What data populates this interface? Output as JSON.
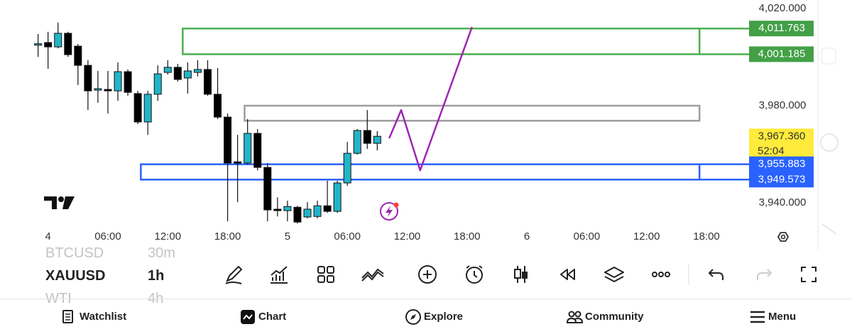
{
  "chart_data": {
    "type": "candlestick",
    "up_color": "#22b4c8",
    "down_color": "#000000",
    "xlim": [
      -1.4,
      77.03
    ],
    "ylim": [
      3930.1,
      4023.5
    ],
    "xticks": [
      {
        "value": 0,
        "label": "4"
      },
      {
        "value": 6,
        "label": "06:00"
      },
      {
        "value": 12,
        "label": "12:00"
      },
      {
        "value": 18,
        "label": "18:00"
      },
      {
        "value": 24,
        "label": "5"
      },
      {
        "value": 30,
        "label": "06:00"
      },
      {
        "value": 36,
        "label": "12:00"
      },
      {
        "value": 42,
        "label": "18:00"
      },
      {
        "value": 48,
        "label": "6"
      },
      {
        "value": 54,
        "label": "06:00"
      },
      {
        "value": 60,
        "label": "12:00"
      },
      {
        "value": 66,
        "label": "18:00"
      }
    ],
    "yticks": [
      {
        "value": 4020,
        "label": "4,020.000"
      },
      {
        "value": 3980,
        "label": "3,980.000"
      },
      {
        "value": 3940,
        "label": "3,940.000"
      }
    ],
    "x": [
      -1,
      0,
      1,
      2,
      3,
      4,
      5,
      6,
      7,
      8,
      9,
      10,
      11,
      12,
      13,
      14,
      15,
      16,
      17,
      18,
      19,
      20,
      21,
      22,
      23,
      24,
      25,
      26,
      27,
      28,
      29,
      30,
      31,
      32,
      33
    ],
    "ohlc": [
      [
        4005.4,
        4009.5,
        4000.1,
        4005.5
      ],
      [
        4006.0,
        4010.4,
        3995.2,
        4004.2
      ],
      [
        4004.2,
        4014.2,
        4003.6,
        4009.8
      ],
      [
        4009.8,
        4010.4,
        4000.1,
        4001.0
      ],
      [
        4004.5,
        4005.4,
        3988.5,
        3996.6
      ],
      [
        3996.6,
        3998.7,
        3978.2,
        3986.1
      ],
      [
        3986.4,
        3994.3,
        3981.2,
        3987.0
      ],
      [
        3986.7,
        3994.3,
        3976.8,
        3986.1
      ],
      [
        3986.1,
        3997.8,
        3982.0,
        3994.0
      ],
      [
        3994.0,
        3994.9,
        3984.1,
        3985.5
      ],
      [
        3985.0,
        3986.1,
        3972.4,
        3973.3
      ],
      [
        3973.3,
        3986.1,
        3968.0,
        3984.7
      ],
      [
        3984.7,
        3996.6,
        3982.0,
        3993.1
      ],
      [
        3993.7,
        3998.7,
        3992.8,
        3995.8
      ],
      [
        3995.8,
        3997.2,
        3989.9,
        3990.8
      ],
      [
        3991.4,
        3997.8,
        3985.0,
        3994.3
      ],
      [
        3993.7,
        3998.7,
        3992.0,
        3994.9
      ],
      [
        3994.9,
        3998.7,
        3984.1,
        3984.7
      ],
      [
        3984.7,
        3995.5,
        3974.5,
        3975.3
      ],
      [
        3975.3,
        3976.8,
        3932.4,
        3956.4
      ],
      [
        3956.9,
        3968.0,
        3940.3,
        3956.4
      ],
      [
        3956.4,
        3974.5,
        3955.8,
        3968.6
      ],
      [
        3968.6,
        3970.4,
        3953.4,
        3954.6
      ],
      [
        3954.6,
        3956.4,
        3932.4,
        3937.1
      ],
      [
        3937.4,
        3942.3,
        3934.4,
        3936.8
      ],
      [
        3936.8,
        3940.9,
        3932.4,
        3938.5
      ],
      [
        3938.2,
        3938.8,
        3931.5,
        3932.1
      ],
      [
        3934.2,
        3940.3,
        3933.6,
        3937.4
      ],
      [
        3934.4,
        3940.9,
        3933.6,
        3938.8
      ],
      [
        3938.8,
        3949.1,
        3935.9,
        3936.5
      ],
      [
        3936.5,
        3949.1,
        3935.9,
        3948.2
      ],
      [
        3948.2,
        3965.1,
        3947.0,
        3960.4
      ],
      [
        3960.4,
        3970.4,
        3959.9,
        3969.8
      ],
      [
        3969.8,
        3978.2,
        3962.2,
        3964.5
      ],
      [
        3964.5,
        3969.5,
        3961.6,
        3967.4
      ]
    ],
    "rectangles": [
      {
        "color": "#4caf50",
        "x": [
          13.5,
          65.3
        ],
        "y": [
          4011.763,
          4001.185
        ]
      },
      {
        "color": "#9e9e9e",
        "x": [
          19.7,
          65.3
        ],
        "y": [
          3980.0,
          3973.8
        ]
      },
      {
        "color": "#2962ff",
        "x": [
          9.3,
          65.3
        ],
        "y": [
          3955.883,
          3949.573
        ]
      }
    ],
    "path": {
      "color": "#9c27b0",
      "x": [
        34.2,
        35.4,
        37.3,
        42.5
      ],
      "y": [
        3966.6,
        3978.2,
        3953.4,
        4012.4
      ]
    },
    "price_labels": [
      {
        "value": 4011.763,
        "label": "4,011.763",
        "color": "#43a047",
        "text_color": "#ffffff"
      },
      {
        "value": 4001.185,
        "label": "4,001.185",
        "color": "#43a047",
        "text_color": "#ffffff"
      },
      {
        "value": 3967.36,
        "label": "3,967.360",
        "countdown": "52:04",
        "color": "#ffeb3b",
        "text_color": "#333333"
      },
      {
        "value": 3955.883,
        "label": "3,955.883",
        "color": "#2962ff",
        "text_color": "#ffffff"
      },
      {
        "value": 3949.573,
        "label": "3,949.573",
        "color": "#2962ff",
        "text_color": "#ffffff"
      }
    ]
  },
  "symbols": [
    {
      "name": "BTCUSD",
      "interval": "30m"
    },
    {
      "name": "XAUUSD",
      "interval": "1h"
    },
    {
      "name": "WTI",
      "interval": "4h"
    }
  ],
  "nav": [
    "Watchlist",
    "Chart",
    "Explore",
    "Community",
    "Menu"
  ]
}
